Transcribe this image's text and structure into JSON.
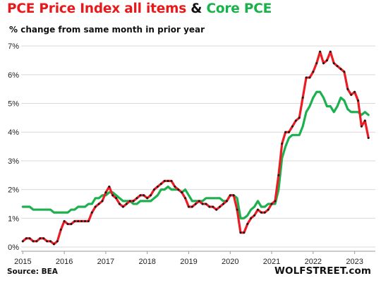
{
  "chart_data": {
    "type": "line",
    "title_parts": {
      "part1": "PCE Price Index all items",
      "amp": "&",
      "part2": "Core PCE"
    },
    "subtitle": "% change from same month in prior year",
    "source": "Source: BEA",
    "brand": "WOLFSTREET.com",
    "x_tick_labels": [
      "2015",
      "2016",
      "2017",
      "2018",
      "2019",
      "2020",
      "2021",
      "2022",
      "2023"
    ],
    "y_tick_labels": [
      "0%",
      "1%",
      "2%",
      "3%",
      "4%",
      "5%",
      "6%",
      "7%"
    ],
    "x_start": "2015-01",
    "xlim": [
      2014.96,
      2023.5
    ],
    "ylim": [
      -0.05,
      7.25
    ],
    "grid": "horizontal",
    "legend": "none",
    "colors": {
      "all_items": "#ec1c24",
      "core": "#1db04e",
      "markers": "#1a1a1a",
      "grid": "#d9d9d9",
      "axis": "#9a9a9a"
    },
    "series": [
      {
        "key": "all_items",
        "values": [
          0.2,
          0.3,
          0.3,
          0.2,
          0.2,
          0.3,
          0.3,
          0.2,
          0.2,
          0.1,
          0.2,
          0.6,
          0.9,
          0.8,
          0.8,
          0.9,
          0.9,
          0.9,
          0.9,
          0.9,
          1.2,
          1.4,
          1.5,
          1.6,
          1.9,
          2.1,
          1.8,
          1.7,
          1.5,
          1.4,
          1.5,
          1.6,
          1.6,
          1.7,
          1.8,
          1.8,
          1.7,
          1.8,
          2.0,
          2.1,
          2.2,
          2.3,
          2.3,
          2.3,
          2.1,
          2.0,
          1.9,
          1.7,
          1.4,
          1.4,
          1.5,
          1.6,
          1.5,
          1.5,
          1.4,
          1.4,
          1.3,
          1.4,
          1.5,
          1.6,
          1.8,
          1.8,
          1.3,
          0.5,
          0.5,
          0.8,
          1.0,
          1.1,
          1.3,
          1.2,
          1.2,
          1.3,
          1.5,
          1.6,
          2.5,
          3.6,
          4.0,
          4.0,
          4.2,
          4.4,
          4.5,
          5.2,
          5.9,
          5.9,
          6.1,
          6.4,
          6.8,
          6.4,
          6.5,
          6.8,
          6.4,
          6.3,
          6.2,
          6.1,
          5.5,
          5.3,
          5.4,
          5.1,
          4.2,
          4.4,
          3.8
        ]
      },
      {
        "key": "core",
        "values": [
          1.4,
          1.4,
          1.4,
          1.3,
          1.3,
          1.3,
          1.3,
          1.3,
          1.3,
          1.2,
          1.2,
          1.2,
          1.2,
          1.2,
          1.3,
          1.3,
          1.4,
          1.4,
          1.4,
          1.5,
          1.5,
          1.7,
          1.7,
          1.8,
          1.8,
          1.9,
          1.9,
          1.8,
          1.7,
          1.6,
          1.6,
          1.6,
          1.5,
          1.5,
          1.6,
          1.6,
          1.6,
          1.6,
          1.7,
          1.8,
          2.0,
          2.0,
          2.1,
          2.0,
          2.0,
          2.0,
          1.9,
          2.0,
          1.8,
          1.6,
          1.6,
          1.6,
          1.6,
          1.7,
          1.7,
          1.7,
          1.7,
          1.7,
          1.6,
          1.6,
          1.8,
          1.8,
          1.7,
          1.0,
          1.0,
          1.1,
          1.3,
          1.4,
          1.6,
          1.4,
          1.4,
          1.5,
          1.5,
          1.5,
          2.0,
          3.1,
          3.5,
          3.8,
          3.9,
          3.9,
          3.9,
          4.2,
          4.7,
          4.9,
          5.2,
          5.4,
          5.4,
          5.2,
          4.9,
          4.9,
          4.7,
          4.9,
          5.2,
          5.1,
          4.8,
          4.7,
          4.7,
          4.7,
          4.6,
          4.7,
          4.6
        ]
      }
    ]
  }
}
